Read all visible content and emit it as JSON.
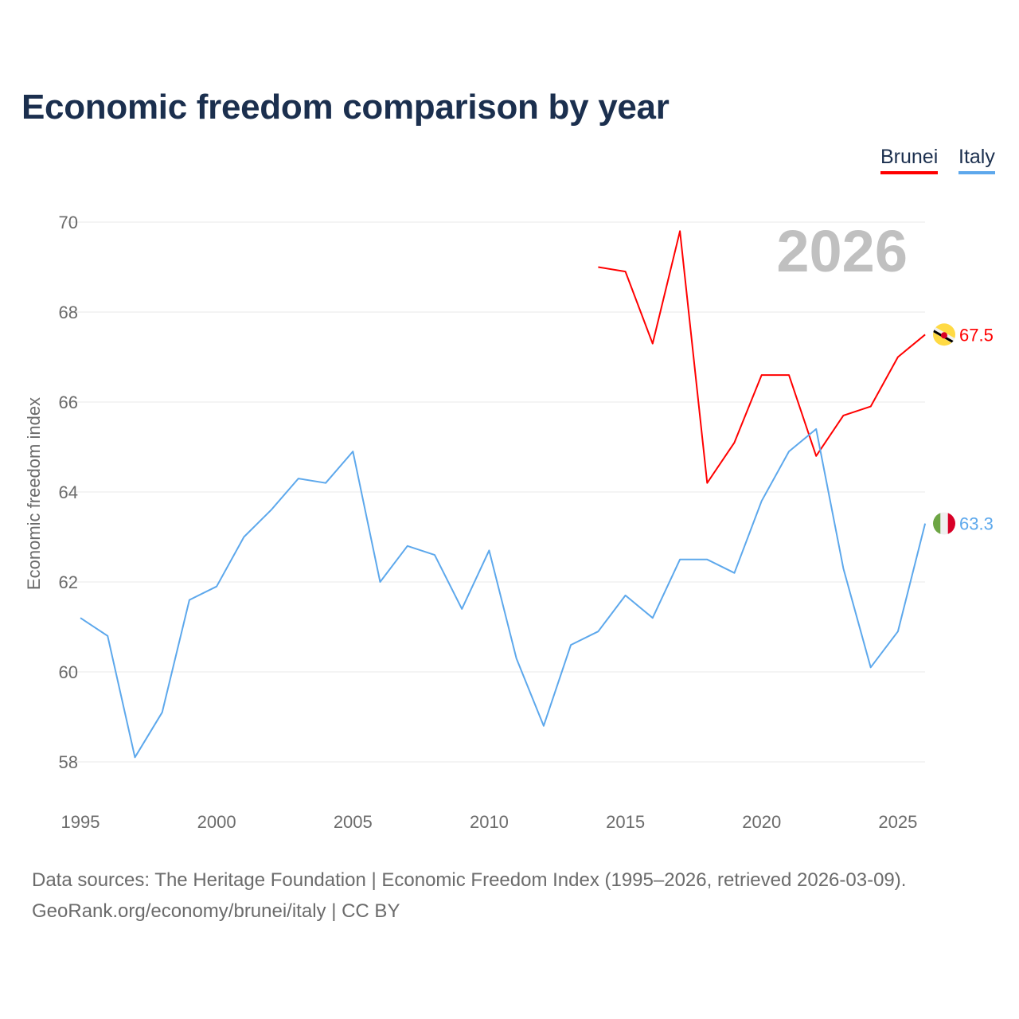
{
  "title": "Economic freedom comparison by year",
  "year_watermark": "2026",
  "source": {
    "line1": "Data sources: The Heritage Foundation | Economic Freedom Index (1995–2026, retrieved 2026-03-09).",
    "line2": "GeoRank.org/economy/brunei/italy | CC BY"
  },
  "chart_data": {
    "type": "line",
    "title": "Economic freedom comparison by year",
    "xlabel": "",
    "ylabel": "Economic freedom index",
    "xlim": [
      1995,
      2026
    ],
    "ylim": [
      57,
      70.5
    ],
    "xticks": [
      1995,
      2000,
      2005,
      2010,
      2015,
      2020,
      2025
    ],
    "yticks": [
      58,
      60,
      62,
      64,
      66,
      68,
      70
    ],
    "grid": true,
    "legend_placement": "top-right",
    "series": [
      {
        "name": "Brunei",
        "color": "#ff0000",
        "end_label": "67.5",
        "flag": "brunei-flag",
        "x": [
          2014,
          2015,
          2016,
          2017,
          2018,
          2019,
          2020,
          2021,
          2022,
          2023,
          2024,
          2025,
          2026
        ],
        "values": [
          69.0,
          68.9,
          67.3,
          69.8,
          64.2,
          65.1,
          66.6,
          66.6,
          64.8,
          65.7,
          65.9,
          67.0,
          67.5
        ]
      },
      {
        "name": "Italy",
        "color": "#5da8ec",
        "end_label": "63.3",
        "flag": "italy-flag",
        "x": [
          1995,
          1996,
          1997,
          1998,
          1999,
          2000,
          2001,
          2002,
          2003,
          2004,
          2005,
          2006,
          2007,
          2008,
          2009,
          2010,
          2011,
          2012,
          2013,
          2014,
          2015,
          2016,
          2017,
          2018,
          2019,
          2020,
          2021,
          2022,
          2023,
          2024,
          2025,
          2026
        ],
        "values": [
          61.2,
          60.8,
          58.1,
          59.1,
          61.6,
          61.9,
          63.0,
          63.6,
          64.3,
          64.2,
          64.9,
          62.0,
          62.8,
          62.6,
          61.4,
          62.7,
          60.3,
          58.8,
          60.6,
          60.9,
          61.7,
          61.2,
          62.5,
          62.5,
          62.2,
          63.8,
          64.9,
          65.4,
          62.3,
          60.1,
          60.9,
          63.3
        ]
      }
    ]
  }
}
